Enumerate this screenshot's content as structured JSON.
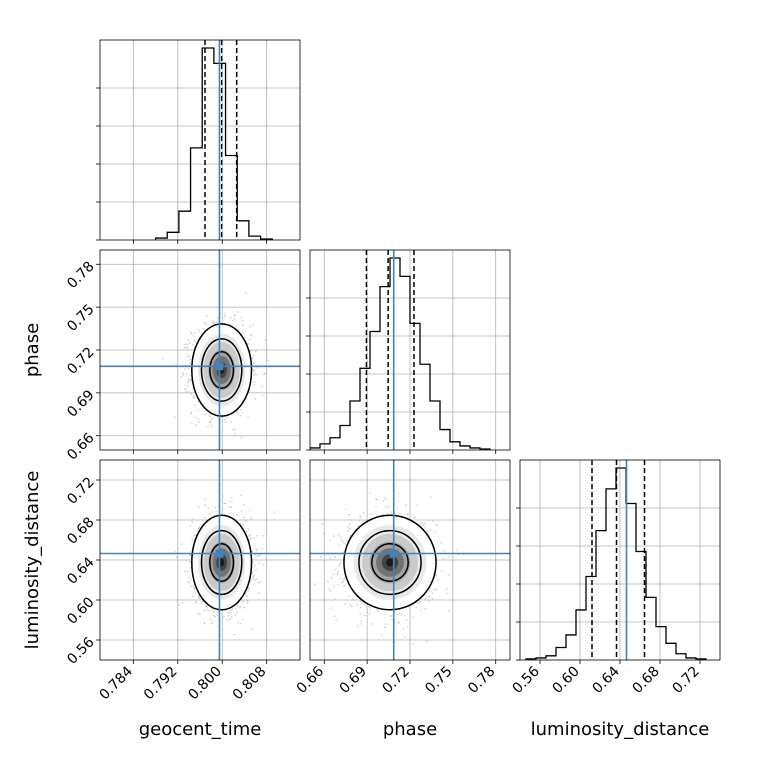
{
  "chart_data": {
    "type": "corner",
    "parameters": [
      "geocent_time",
      "phase",
      "luminosity_distance"
    ],
    "labels": {
      "x": [
        "geocent_time",
        "phase",
        "luminosity_distance"
      ],
      "y": [
        "phase",
        "luminosity_distance"
      ]
    },
    "ranges": {
      "geocent_time": [
        0.778,
        0.814
      ],
      "phase": [
        0.65,
        0.79
      ],
      "luminosity_distance": [
        0.54,
        0.74
      ]
    },
    "ticks": {
      "geocent_time": [
        "0.784",
        "0.792",
        "0.800",
        "0.808"
      ],
      "phase": [
        "0.66",
        "0.69",
        "0.72",
        "0.75",
        "0.78"
      ],
      "luminosity_distance": [
        "0.56",
        "0.60",
        "0.64",
        "0.68",
        "0.72"
      ]
    },
    "tick_values": {
      "geocent_time": [
        0.784,
        0.792,
        0.8,
        0.808
      ],
      "phase": [
        0.66,
        0.69,
        0.72,
        0.75,
        0.78
      ],
      "luminosity_distance": [
        0.56,
        0.6,
        0.64,
        0.68,
        0.72
      ]
    },
    "truths": {
      "geocent_time": 0.7995,
      "phase": 0.7086,
      "luminosity_distance": 0.6465
    },
    "quantiles": {
      "geocent_time": [
        0.7969,
        0.7999,
        0.8026
      ],
      "phase": [
        0.6895,
        0.7047,
        0.7228
      ],
      "luminosity_distance": [
        0.612,
        0.6365,
        0.6645
      ]
    },
    "means": {
      "geocent_time": 0.7999,
      "phase": 0.706,
      "luminosity_distance": 0.6375
    },
    "sigmas": {
      "geocent_time": 0.0025,
      "phase": 0.015,
      "luminosity_distance": 0.022
    },
    "histograms": {
      "geocent_time": {
        "bin_edges": [
          0.788,
          0.7901,
          0.7922,
          0.7943,
          0.7964,
          0.7985,
          0.8006,
          0.8027,
          0.8048,
          0.8069,
          0.809
        ],
        "counts": [
          0.01,
          0.04,
          0.15,
          0.48,
          1.0,
          0.92,
          0.44,
          0.1,
          0.02,
          0.005
        ]
      },
      "phase": {
        "bin_edges": [
          0.65,
          0.657,
          0.664,
          0.671,
          0.678,
          0.685,
          0.692,
          0.699,
          0.706,
          0.713,
          0.72,
          0.727,
          0.734,
          0.741,
          0.748,
          0.755,
          0.762,
          0.769,
          0.776
        ],
        "counts": [
          0.01,
          0.03,
          0.06,
          0.12,
          0.24,
          0.4,
          0.58,
          0.8,
          0.94,
          0.85,
          0.62,
          0.42,
          0.24,
          0.1,
          0.04,
          0.02,
          0.01,
          0.005
        ]
      },
      "luminosity_distance": {
        "bin_edges": [
          0.546,
          0.556,
          0.566,
          0.576,
          0.586,
          0.596,
          0.606,
          0.616,
          0.626,
          0.636,
          0.646,
          0.656,
          0.666,
          0.676,
          0.686,
          0.696,
          0.706,
          0.716,
          0.726
        ],
        "counts": [
          0.005,
          0.01,
          0.02,
          0.06,
          0.12,
          0.24,
          0.4,
          0.62,
          0.82,
          0.92,
          0.75,
          0.52,
          0.3,
          0.16,
          0.08,
          0.03,
          0.01,
          0.005
        ]
      }
    },
    "grid": true,
    "colors": {
      "truth": "#4682b4",
      "hist": "#000000",
      "quantile": "#000000",
      "scatter": "#bbbbbb"
    }
  }
}
